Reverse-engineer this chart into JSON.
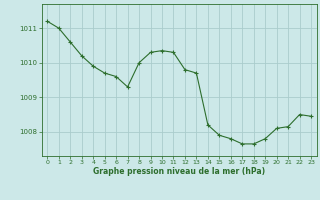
{
  "x": [
    0,
    1,
    2,
    3,
    4,
    5,
    6,
    7,
    8,
    9,
    10,
    11,
    12,
    13,
    14,
    15,
    16,
    17,
    18,
    19,
    20,
    21,
    22,
    23
  ],
  "y": [
    1011.2,
    1011.0,
    1010.6,
    1010.2,
    1009.9,
    1009.7,
    1009.6,
    1009.3,
    1010.0,
    1010.3,
    1010.35,
    1010.3,
    1009.8,
    1009.7,
    1008.2,
    1007.9,
    1007.8,
    1007.65,
    1007.65,
    1007.8,
    1008.1,
    1008.15,
    1008.5,
    1008.45
  ],
  "line_color": "#2d6e2d",
  "marker": "+",
  "marker_size": 3,
  "bg_color": "#cce8e8",
  "grid_color": "#aacccc",
  "tick_color": "#2d6e2d",
  "label_color": "#2d6e2d",
  "xlabel": "Graphe pression niveau de la mer (hPa)",
  "yticks": [
    1008,
    1009,
    1010,
    1011
  ],
  "ylim": [
    1007.3,
    1011.7
  ],
  "xlim": [
    -0.5,
    23.5
  ],
  "xticks": [
    0,
    1,
    2,
    3,
    4,
    5,
    6,
    7,
    8,
    9,
    10,
    11,
    12,
    13,
    14,
    15,
    16,
    17,
    18,
    19,
    20,
    21,
    22,
    23
  ]
}
